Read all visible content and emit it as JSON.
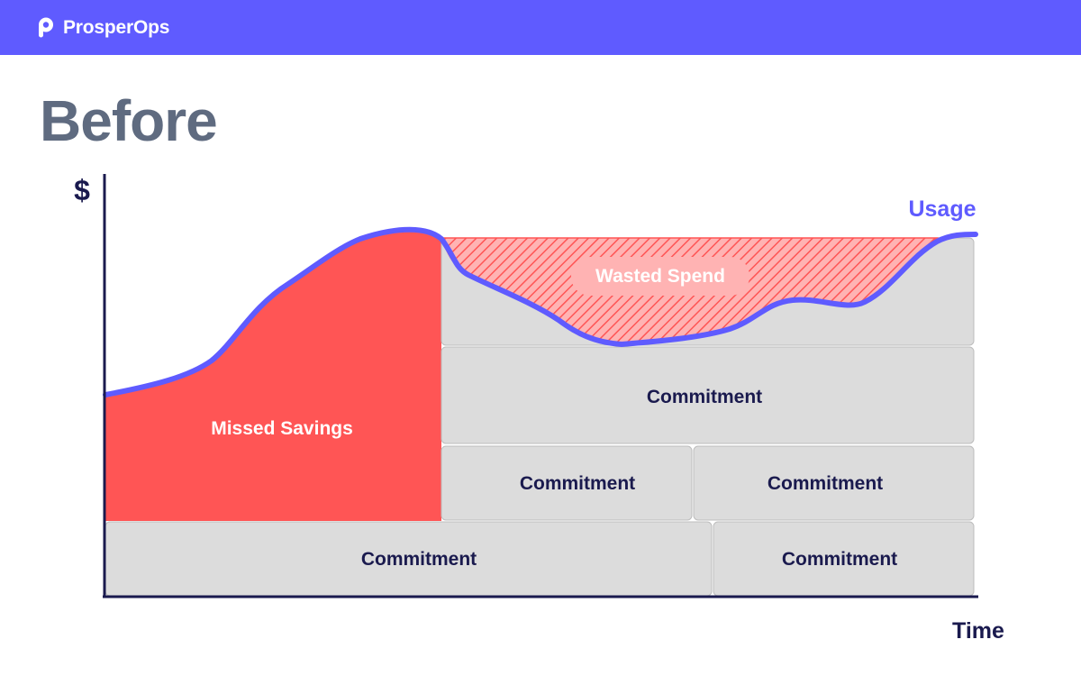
{
  "brand": {
    "name": "ProsperOps"
  },
  "page": {
    "title": "Before"
  },
  "diagram": {
    "y_axis_label": "$",
    "x_axis_label": "Time",
    "usage_label": "Usage",
    "wasted_spend_label": "Wasted Spend",
    "missed_savings_label": "Missed Savings",
    "commitments": [
      {
        "label": "Commitment"
      },
      {
        "label": "Commitment"
      },
      {
        "label": "Commitment"
      },
      {
        "label": "Commitment"
      },
      {
        "label": "Commitment"
      }
    ]
  },
  "colors": {
    "brand": "#5f5bff",
    "usage_line": "#5f5bff",
    "missed_savings": "#ff5555",
    "commitment_fill": "#dcdcdc",
    "commitment_text": "#1a1a4e",
    "title": "#5f6b80"
  }
}
